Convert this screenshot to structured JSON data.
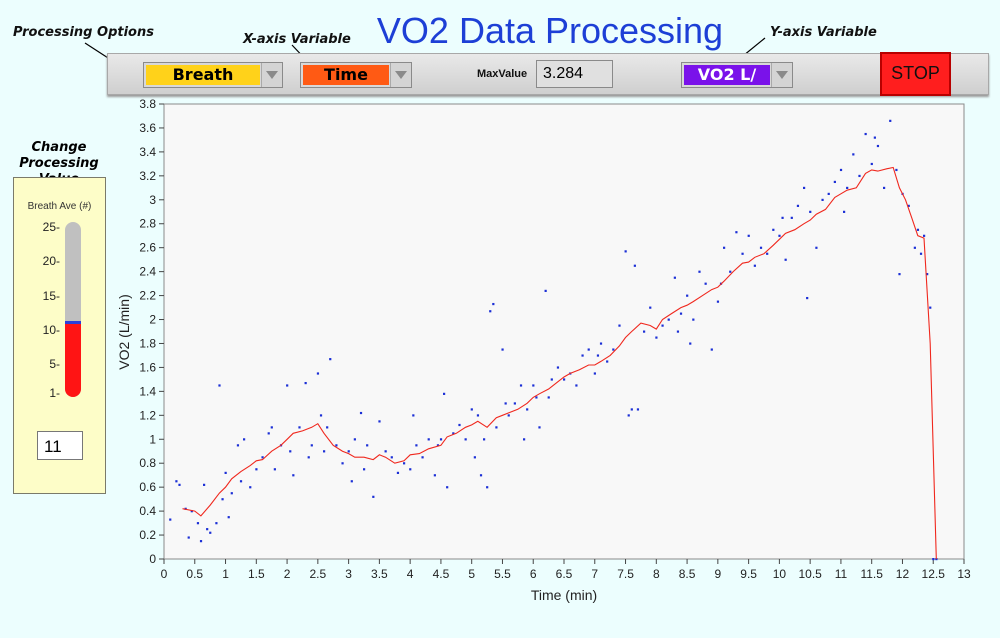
{
  "title": "VO2 Data Processing",
  "hints": {
    "processing_options": "Processing Options",
    "x_axis_variable": "X-axis Variable",
    "y_axis_variable": "Y-axis Variable"
  },
  "toolbar": {
    "processing_option": {
      "value": "Breath",
      "color": "#ffd21a"
    },
    "x_variable": {
      "value": "Time",
      "color": "#ff5a14"
    },
    "max_label": "MaxValue",
    "max_value": "3.284",
    "y_variable": {
      "value": "VO2 L/",
      "color": "#7a12ea"
    },
    "stop_label": "STOP"
  },
  "side_panel": {
    "heading": "Change Processing Value",
    "control_label": "Breath Ave (#)",
    "scale_ticks": [
      "25",
      "20",
      "15",
      "10",
      "5",
      "1"
    ],
    "value_fraction": 0.42,
    "numeric_value": "11"
  },
  "chart_data": {
    "type": "scatter",
    "xlabel": "Time (min)",
    "ylabel": "VO2 (L/min)",
    "xlim": [
      0,
      13
    ],
    "ylim": [
      0,
      3.8
    ],
    "x_ticks": [
      "0",
      "0.5",
      "1",
      "1.5",
      "2",
      "2.5",
      "3",
      "3.5",
      "4",
      "4.5",
      "5",
      "5.5",
      "6",
      "6.5",
      "7",
      "7.5",
      "8",
      "8.5",
      "9",
      "9.5",
      "10",
      "10.5",
      "11",
      "11.5",
      "12",
      "12.5",
      "13"
    ],
    "y_ticks": [
      "0",
      "0.2",
      "0.4",
      "0.6",
      "0.8",
      "1",
      "1.2",
      "1.4",
      "1.6",
      "1.8",
      "2",
      "2.2",
      "2.4",
      "2.6",
      "2.8",
      "3",
      "3.2",
      "3.4",
      "3.6",
      "3.8"
    ],
    "grid": false,
    "series": [
      {
        "kind": "points",
        "color": "#1b2fd6",
        "points": [
          [
            0.1,
            0.33
          ],
          [
            0.2,
            0.65
          ],
          [
            0.25,
            0.62
          ],
          [
            0.35,
            0.42
          ],
          [
            0.4,
            0.18
          ],
          [
            0.45,
            0.4
          ],
          [
            0.55,
            0.3
          ],
          [
            0.6,
            0.15
          ],
          [
            0.65,
            0.62
          ],
          [
            0.7,
            0.25
          ],
          [
            0.75,
            0.22
          ],
          [
            0.85,
            0.3
          ],
          [
            0.9,
            1.45
          ],
          [
            0.95,
            0.5
          ],
          [
            1.0,
            0.72
          ],
          [
            1.05,
            0.35
          ],
          [
            1.1,
            0.55
          ],
          [
            1.2,
            0.95
          ],
          [
            1.25,
            0.65
          ],
          [
            1.3,
            1.0
          ],
          [
            1.4,
            0.6
          ],
          [
            1.5,
            0.75
          ],
          [
            1.6,
            0.85
          ],
          [
            1.7,
            1.05
          ],
          [
            1.75,
            1.1
          ],
          [
            1.8,
            0.75
          ],
          [
            1.9,
            0.95
          ],
          [
            2.0,
            1.45
          ],
          [
            2.05,
            0.9
          ],
          [
            2.1,
            0.7
          ],
          [
            2.2,
            1.1
          ],
          [
            2.3,
            1.47
          ],
          [
            2.35,
            0.85
          ],
          [
            2.4,
            0.95
          ],
          [
            2.5,
            1.55
          ],
          [
            2.55,
            1.2
          ],
          [
            2.6,
            0.9
          ],
          [
            2.65,
            1.1
          ],
          [
            2.7,
            1.67
          ],
          [
            2.8,
            0.95
          ],
          [
            2.9,
            0.8
          ],
          [
            3.0,
            0.9
          ],
          [
            3.05,
            0.65
          ],
          [
            3.1,
            1.0
          ],
          [
            3.2,
            1.22
          ],
          [
            3.25,
            0.75
          ],
          [
            3.3,
            0.95
          ],
          [
            3.4,
            0.52
          ],
          [
            3.5,
            1.15
          ],
          [
            3.6,
            0.9
          ],
          [
            3.7,
            0.85
          ],
          [
            3.8,
            0.72
          ],
          [
            3.9,
            0.8
          ],
          [
            4.0,
            0.75
          ],
          [
            4.05,
            1.2
          ],
          [
            4.1,
            0.95
          ],
          [
            4.2,
            0.85
          ],
          [
            4.3,
            1.0
          ],
          [
            4.4,
            0.7
          ],
          [
            4.45,
            0.95
          ],
          [
            4.5,
            1.0
          ],
          [
            4.55,
            1.38
          ],
          [
            4.6,
            0.6
          ],
          [
            4.7,
            1.05
          ],
          [
            4.8,
            1.12
          ],
          [
            4.9,
            1.0
          ],
          [
            5.0,
            1.25
          ],
          [
            5.05,
            0.85
          ],
          [
            5.1,
            1.2
          ],
          [
            5.15,
            0.7
          ],
          [
            5.2,
            1.0
          ],
          [
            5.25,
            0.6
          ],
          [
            5.3,
            2.07
          ],
          [
            5.35,
            2.13
          ],
          [
            5.4,
            1.1
          ],
          [
            5.5,
            1.75
          ],
          [
            5.55,
            1.3
          ],
          [
            5.6,
            1.2
          ],
          [
            5.7,
            1.3
          ],
          [
            5.8,
            1.45
          ],
          [
            5.85,
            1.0
          ],
          [
            5.9,
            1.25
          ],
          [
            6.0,
            1.45
          ],
          [
            6.05,
            1.35
          ],
          [
            6.1,
            1.1
          ],
          [
            6.2,
            2.24
          ],
          [
            6.25,
            1.35
          ],
          [
            6.3,
            1.5
          ],
          [
            6.4,
            1.6
          ],
          [
            6.5,
            1.5
          ],
          [
            6.6,
            1.55
          ],
          [
            6.7,
            1.45
          ],
          [
            6.8,
            1.7
          ],
          [
            6.9,
            1.75
          ],
          [
            7.0,
            1.55
          ],
          [
            7.05,
            1.7
          ],
          [
            7.1,
            1.8
          ],
          [
            7.2,
            1.65
          ],
          [
            7.3,
            1.75
          ],
          [
            7.4,
            1.95
          ],
          [
            7.5,
            2.57
          ],
          [
            7.55,
            1.2
          ],
          [
            7.6,
            1.25
          ],
          [
            7.65,
            2.45
          ],
          [
            7.7,
            1.25
          ],
          [
            7.8,
            1.9
          ],
          [
            7.9,
            2.1
          ],
          [
            8.0,
            1.85
          ],
          [
            8.1,
            1.95
          ],
          [
            8.2,
            2.0
          ],
          [
            8.3,
            2.35
          ],
          [
            8.35,
            1.9
          ],
          [
            8.4,
            2.05
          ],
          [
            8.5,
            2.2
          ],
          [
            8.55,
            1.8
          ],
          [
            8.6,
            2.0
          ],
          [
            8.7,
            2.4
          ],
          [
            8.8,
            2.3
          ],
          [
            8.9,
            1.75
          ],
          [
            9.0,
            2.15
          ],
          [
            9.05,
            2.3
          ],
          [
            9.1,
            2.6
          ],
          [
            9.2,
            2.4
          ],
          [
            9.3,
            2.73
          ],
          [
            9.4,
            2.55
          ],
          [
            9.5,
            2.7
          ],
          [
            9.6,
            2.45
          ],
          [
            9.7,
            2.6
          ],
          [
            9.8,
            2.55
          ],
          [
            9.9,
            2.75
          ],
          [
            10.0,
            2.7
          ],
          [
            10.05,
            2.85
          ],
          [
            10.1,
            2.5
          ],
          [
            10.2,
            2.85
          ],
          [
            10.3,
            2.95
          ],
          [
            10.4,
            3.1
          ],
          [
            10.45,
            2.18
          ],
          [
            10.5,
            2.9
          ],
          [
            10.6,
            2.6
          ],
          [
            10.7,
            3.0
          ],
          [
            10.8,
            3.05
          ],
          [
            10.9,
            3.15
          ],
          [
            11.0,
            3.25
          ],
          [
            11.05,
            2.9
          ],
          [
            11.1,
            3.1
          ],
          [
            11.2,
            3.38
          ],
          [
            11.3,
            3.2
          ],
          [
            11.4,
            3.55
          ],
          [
            11.5,
            3.3
          ],
          [
            11.55,
            3.52
          ],
          [
            11.6,
            3.45
          ],
          [
            11.7,
            3.1
          ],
          [
            11.8,
            3.66
          ],
          [
            11.9,
            3.25
          ],
          [
            11.95,
            2.38
          ],
          [
            12.0,
            3.05
          ],
          [
            12.1,
            2.95
          ],
          [
            12.2,
            2.6
          ],
          [
            12.25,
            2.75
          ],
          [
            12.3,
            2.55
          ],
          [
            12.35,
            2.7
          ],
          [
            12.4,
            2.38
          ],
          [
            12.45,
            2.1
          ],
          [
            12.5,
            0.0
          ],
          [
            12.55,
            0.0
          ]
        ]
      },
      {
        "kind": "line",
        "color": "#f0281e",
        "points": [
          [
            0.3,
            0.42
          ],
          [
            0.5,
            0.4
          ],
          [
            0.6,
            0.36
          ],
          [
            0.75,
            0.45
          ],
          [
            0.9,
            0.55
          ],
          [
            1.0,
            0.6
          ],
          [
            1.1,
            0.67
          ],
          [
            1.25,
            0.73
          ],
          [
            1.4,
            0.78
          ],
          [
            1.5,
            0.82
          ],
          [
            1.6,
            0.83
          ],
          [
            1.75,
            0.9
          ],
          [
            1.9,
            0.95
          ],
          [
            2.0,
            1.0
          ],
          [
            2.1,
            1.05
          ],
          [
            2.25,
            1.07
          ],
          [
            2.4,
            1.1
          ],
          [
            2.5,
            1.13
          ],
          [
            2.6,
            1.05
          ],
          [
            2.75,
            0.95
          ],
          [
            2.9,
            0.9
          ],
          [
            3.0,
            0.88
          ],
          [
            3.1,
            0.85
          ],
          [
            3.25,
            0.85
          ],
          [
            3.4,
            0.83
          ],
          [
            3.5,
            0.87
          ],
          [
            3.6,
            0.85
          ],
          [
            3.75,
            0.8
          ],
          [
            3.9,
            0.82
          ],
          [
            4.0,
            0.87
          ],
          [
            4.15,
            0.88
          ],
          [
            4.3,
            0.92
          ],
          [
            4.5,
            0.95
          ],
          [
            4.6,
            1.02
          ],
          [
            4.75,
            1.05
          ],
          [
            4.9,
            1.1
          ],
          [
            5.0,
            1.12
          ],
          [
            5.1,
            1.15
          ],
          [
            5.25,
            1.1
          ],
          [
            5.4,
            1.18
          ],
          [
            5.5,
            1.2
          ],
          [
            5.6,
            1.22
          ],
          [
            5.75,
            1.25
          ],
          [
            5.9,
            1.3
          ],
          [
            6.0,
            1.35
          ],
          [
            6.1,
            1.38
          ],
          [
            6.25,
            1.42
          ],
          [
            6.4,
            1.48
          ],
          [
            6.5,
            1.52
          ],
          [
            6.6,
            1.55
          ],
          [
            6.75,
            1.58
          ],
          [
            6.9,
            1.62
          ],
          [
            7.0,
            1.62
          ],
          [
            7.1,
            1.65
          ],
          [
            7.25,
            1.7
          ],
          [
            7.4,
            1.78
          ],
          [
            7.5,
            1.85
          ],
          [
            7.6,
            1.9
          ],
          [
            7.75,
            1.97
          ],
          [
            7.9,
            1.95
          ],
          [
            8.0,
            1.92
          ],
          [
            8.1,
            2.0
          ],
          [
            8.25,
            2.05
          ],
          [
            8.4,
            2.1
          ],
          [
            8.5,
            2.12
          ],
          [
            8.6,
            2.15
          ],
          [
            8.75,
            2.2
          ],
          [
            8.9,
            2.25
          ],
          [
            9.0,
            2.27
          ],
          [
            9.1,
            2.32
          ],
          [
            9.25,
            2.4
          ],
          [
            9.4,
            2.47
          ],
          [
            9.5,
            2.48
          ],
          [
            9.6,
            2.52
          ],
          [
            9.75,
            2.55
          ],
          [
            9.9,
            2.62
          ],
          [
            10.0,
            2.67
          ],
          [
            10.1,
            2.72
          ],
          [
            10.25,
            2.75
          ],
          [
            10.4,
            2.8
          ],
          [
            10.5,
            2.83
          ],
          [
            10.6,
            2.88
          ],
          [
            10.75,
            2.92
          ],
          [
            10.9,
            3.02
          ],
          [
            11.0,
            3.05
          ],
          [
            11.1,
            3.08
          ],
          [
            11.25,
            3.1
          ],
          [
            11.4,
            3.22
          ],
          [
            11.5,
            3.25
          ],
          [
            11.6,
            3.24
          ],
          [
            11.75,
            3.26
          ],
          [
            11.85,
            3.27
          ],
          [
            11.95,
            3.1
          ],
          [
            12.05,
            3.0
          ],
          [
            12.15,
            2.85
          ],
          [
            12.25,
            2.7
          ],
          [
            12.35,
            2.68
          ],
          [
            12.45,
            1.8
          ],
          [
            12.55,
            0.0
          ]
        ]
      }
    ]
  }
}
